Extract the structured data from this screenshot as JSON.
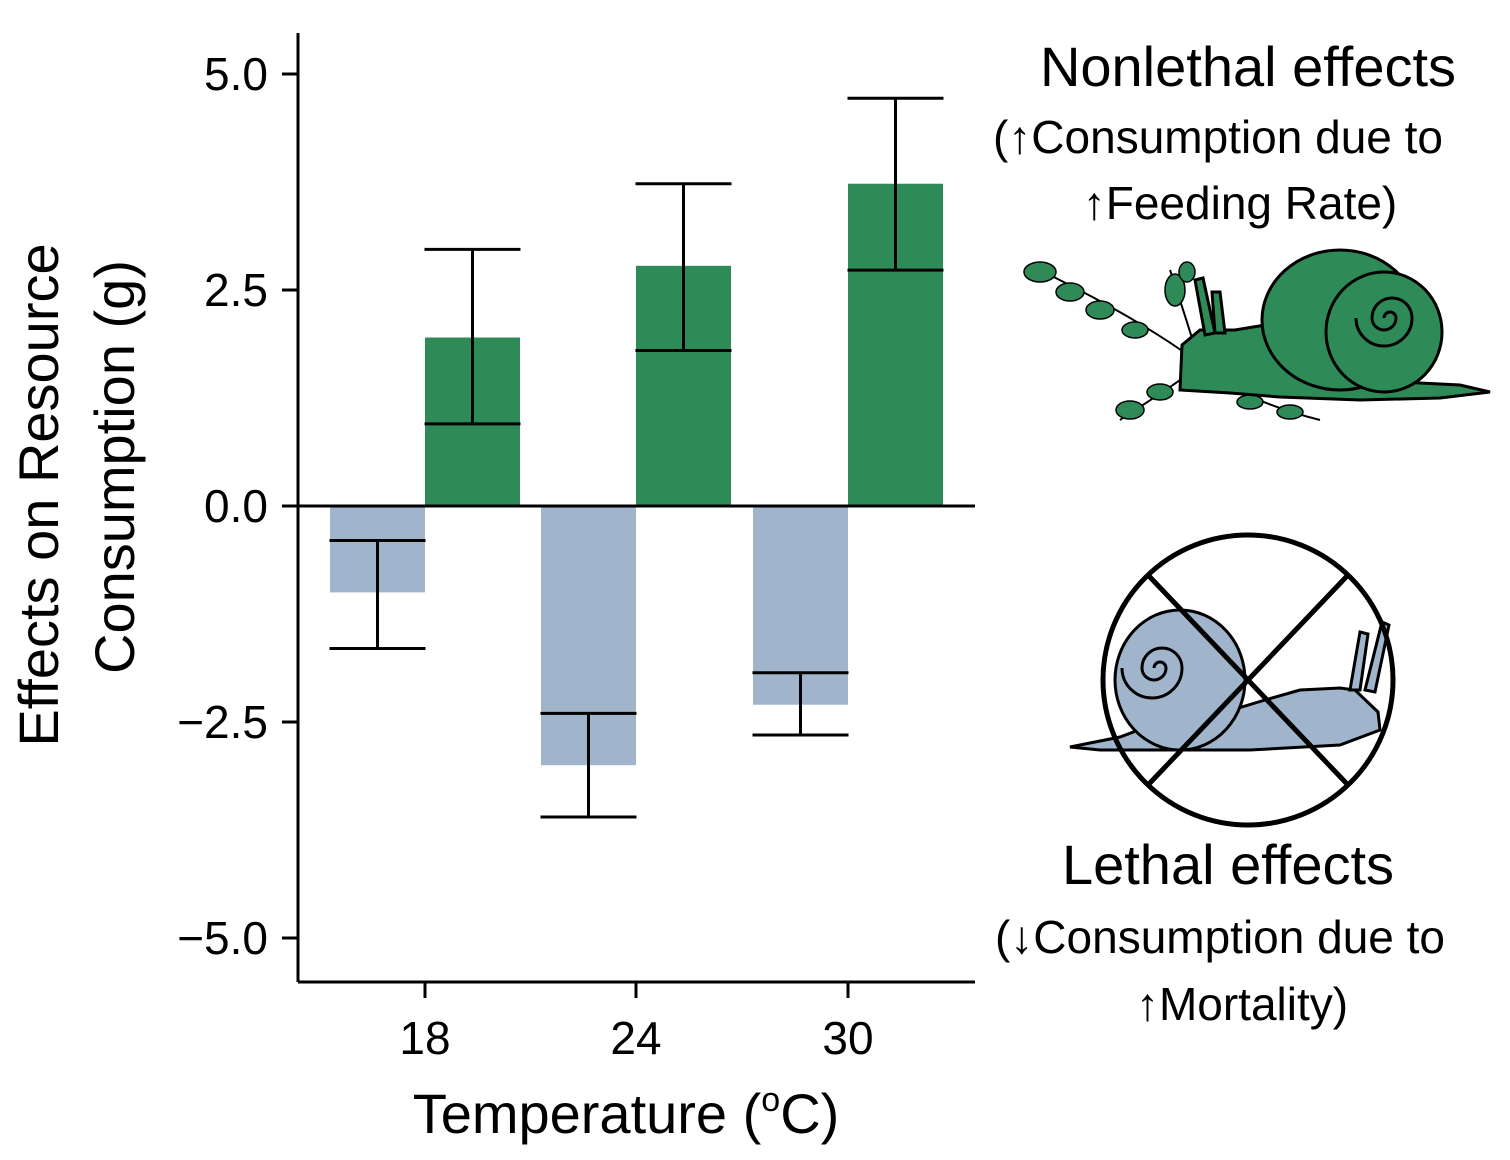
{
  "chart_data": {
    "type": "bar",
    "categories": [
      "18",
      "24",
      "30"
    ],
    "series": [
      {
        "values": [
          -1.0,
          -3.0,
          -2.3
        ],
        "errors": [
          [
            -1.65,
            -0.4
          ],
          [
            -3.6,
            -2.4
          ],
          [
            -2.65,
            -1.93
          ]
        ],
        "color": "#a0b5cc"
      },
      {
        "values": [
          1.95,
          2.78,
          3.73
        ],
        "errors": [
          [
            0.95,
            2.97
          ],
          [
            1.8,
            3.73
          ],
          [
            2.73,
            4.72
          ]
        ],
        "color": "#2e8b57"
      }
    ],
    "xlabel": "Temperature (",
    "xlabel_sup": "o",
    "xlabel_end": "C)",
    "ylabel_line1": "Effects on Resource",
    "ylabel_line2": "Consumption (g)",
    "yticks": [
      5.0,
      2.5,
      0.0,
      -2.5,
      -5.0
    ],
    "ytick_labels": [
      "5.0",
      "2.5",
      "0.0",
      "−2.5",
      "−5.0"
    ],
    "ylim": [
      -5.5,
      5.5
    ],
    "grid": false,
    "zero_line": true
  },
  "annotations": {
    "nonlethal": {
      "title": "Nonlethal effects",
      "line2": "(↑Consumption due to",
      "line3": "↑Feeding Rate)",
      "icon": "snail-with-plant-icon",
      "color": "#2e8b57"
    },
    "lethal": {
      "title": "Lethal effects",
      "line2": "(↓Consumption due to",
      "line3": "↑Mortality)",
      "icon": "crossed-out-snail-icon",
      "color": "#a0b5cc"
    }
  }
}
